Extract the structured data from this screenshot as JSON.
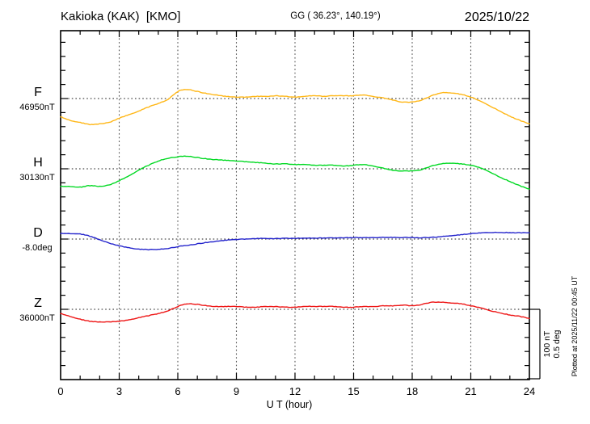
{
  "header": {
    "station": "Kakioka (KAK)  [KMO]",
    "coords": "GG ( 36.23°, 140.19°)",
    "date": "2025/10/22"
  },
  "axis": {
    "xlabel": "U T (hour)",
    "x_ticks": [
      0,
      3,
      6,
      9,
      12,
      15,
      18,
      21,
      24
    ]
  },
  "channels": [
    {
      "id": "F",
      "letter": "F",
      "base_label": "46950nT",
      "color": "#ffb717"
    },
    {
      "id": "H",
      "letter": "H",
      "base_label": "30130nT",
      "color": "#00d922"
    },
    {
      "id": "D",
      "letter": "D",
      "base_label": "-8.0deg",
      "color": "#2424cc"
    },
    {
      "id": "Z",
      "letter": "Z",
      "base_label": "36000nT",
      "color": "#ee1515"
    }
  ],
  "scalebar": {
    "line1": "100 nT",
    "line2": "0.5 deg"
  },
  "footer_note": "Plotted at 2025/11/22 00:45 UT",
  "chart_data": {
    "type": "line",
    "title": "Kakioka (KAK) [KMO] magnetogram 2025/10/22",
    "xlabel": "U T (hour)",
    "x_range": [
      0,
      24
    ],
    "x_ticks": [
      0,
      3,
      6,
      9,
      12,
      15,
      18,
      21,
      24
    ],
    "grid": "dotted vertical every 3 h; dotted horizontal baseline per channel",
    "minor_div": {
      "nT": 20,
      "deg": 0.1
    },
    "scale_bar": {
      "nT": 100,
      "deg": 0.5
    },
    "x_hours": [
      0,
      0.5,
      1,
      1.5,
      2,
      2.5,
      3,
      3.5,
      4,
      4.5,
      5,
      5.5,
      6,
      6.5,
      7,
      7.5,
      8,
      8.5,
      9,
      9.5,
      10,
      10.5,
      11,
      11.5,
      12,
      12.5,
      13,
      13.5,
      14,
      14.5,
      15,
      15.5,
      16,
      16.5,
      17,
      17.5,
      18,
      18.5,
      19,
      19.5,
      20,
      20.5,
      21,
      21.5,
      22,
      22.5,
      23,
      23.5,
      24
    ],
    "series": [
      {
        "name": "F",
        "unit": "nT",
        "base": 46950,
        "color": "#ffb717",
        "offsets": [
          -26,
          -31,
          -34,
          -37,
          -36,
          -34,
          -28,
          -23,
          -18,
          -12,
          -7,
          -1,
          10,
          13,
          10,
          7,
          5,
          3,
          2,
          2,
          3,
          3,
          4,
          3,
          2,
          3,
          4,
          3,
          4,
          4,
          4,
          5,
          3,
          1,
          -2,
          -5,
          -5,
          -2,
          4,
          8,
          8,
          6,
          2,
          -4,
          -11,
          -18,
          -25,
          -31,
          -36
        ]
      },
      {
        "name": "H",
        "unit": "nT",
        "base": 30130,
        "color": "#00d922",
        "offsets": [
          -25,
          -25,
          -26,
          -24,
          -25,
          -23,
          -17,
          -10,
          -2,
          5,
          11,
          15,
          17,
          18,
          16,
          14,
          13,
          12,
          11,
          10,
          9,
          8,
          7,
          7,
          6,
          6,
          5,
          5,
          5,
          4,
          5,
          6,
          4,
          1,
          -2,
          -3,
          -3,
          -1,
          4,
          7,
          8,
          7,
          5,
          1,
          -5,
          -12,
          -18,
          -24,
          -29
        ]
      },
      {
        "name": "D",
        "unit": "deg",
        "base": -8.0,
        "color": "#2424cc",
        "offsets": [
          0.04,
          0.04,
          0.036,
          0.02,
          -0.005,
          -0.03,
          -0.048,
          -0.062,
          -0.072,
          -0.075,
          -0.073,
          -0.066,
          -0.054,
          -0.044,
          -0.034,
          -0.024,
          -0.015,
          -0.008,
          -0.003,
          0.0,
          0.003,
          0.004,
          0.004,
          0.005,
          0.005,
          0.006,
          0.006,
          0.007,
          0.008,
          0.009,
          0.01,
          0.01,
          0.011,
          0.012,
          0.012,
          0.011,
          0.01,
          0.009,
          0.012,
          0.017,
          0.024,
          0.031,
          0.038,
          0.043,
          0.046,
          0.047,
          0.046,
          0.045,
          0.045
        ]
      },
      {
        "name": "Z",
        "unit": "nT",
        "base": 36000,
        "color": "#ee1515",
        "offsets": [
          -6,
          -10,
          -14,
          -17,
          -18,
          -18,
          -17,
          -15,
          -12,
          -9,
          -6,
          -2,
          4,
          8,
          7,
          5,
          4,
          4,
          4,
          3,
          3,
          4,
          4,
          3,
          3,
          4,
          4,
          4,
          4,
          3,
          3,
          4,
          4,
          5,
          5,
          6,
          5,
          7,
          10,
          10,
          9,
          8,
          5,
          2,
          -2,
          -5,
          -8,
          -10,
          -13
        ]
      }
    ]
  }
}
